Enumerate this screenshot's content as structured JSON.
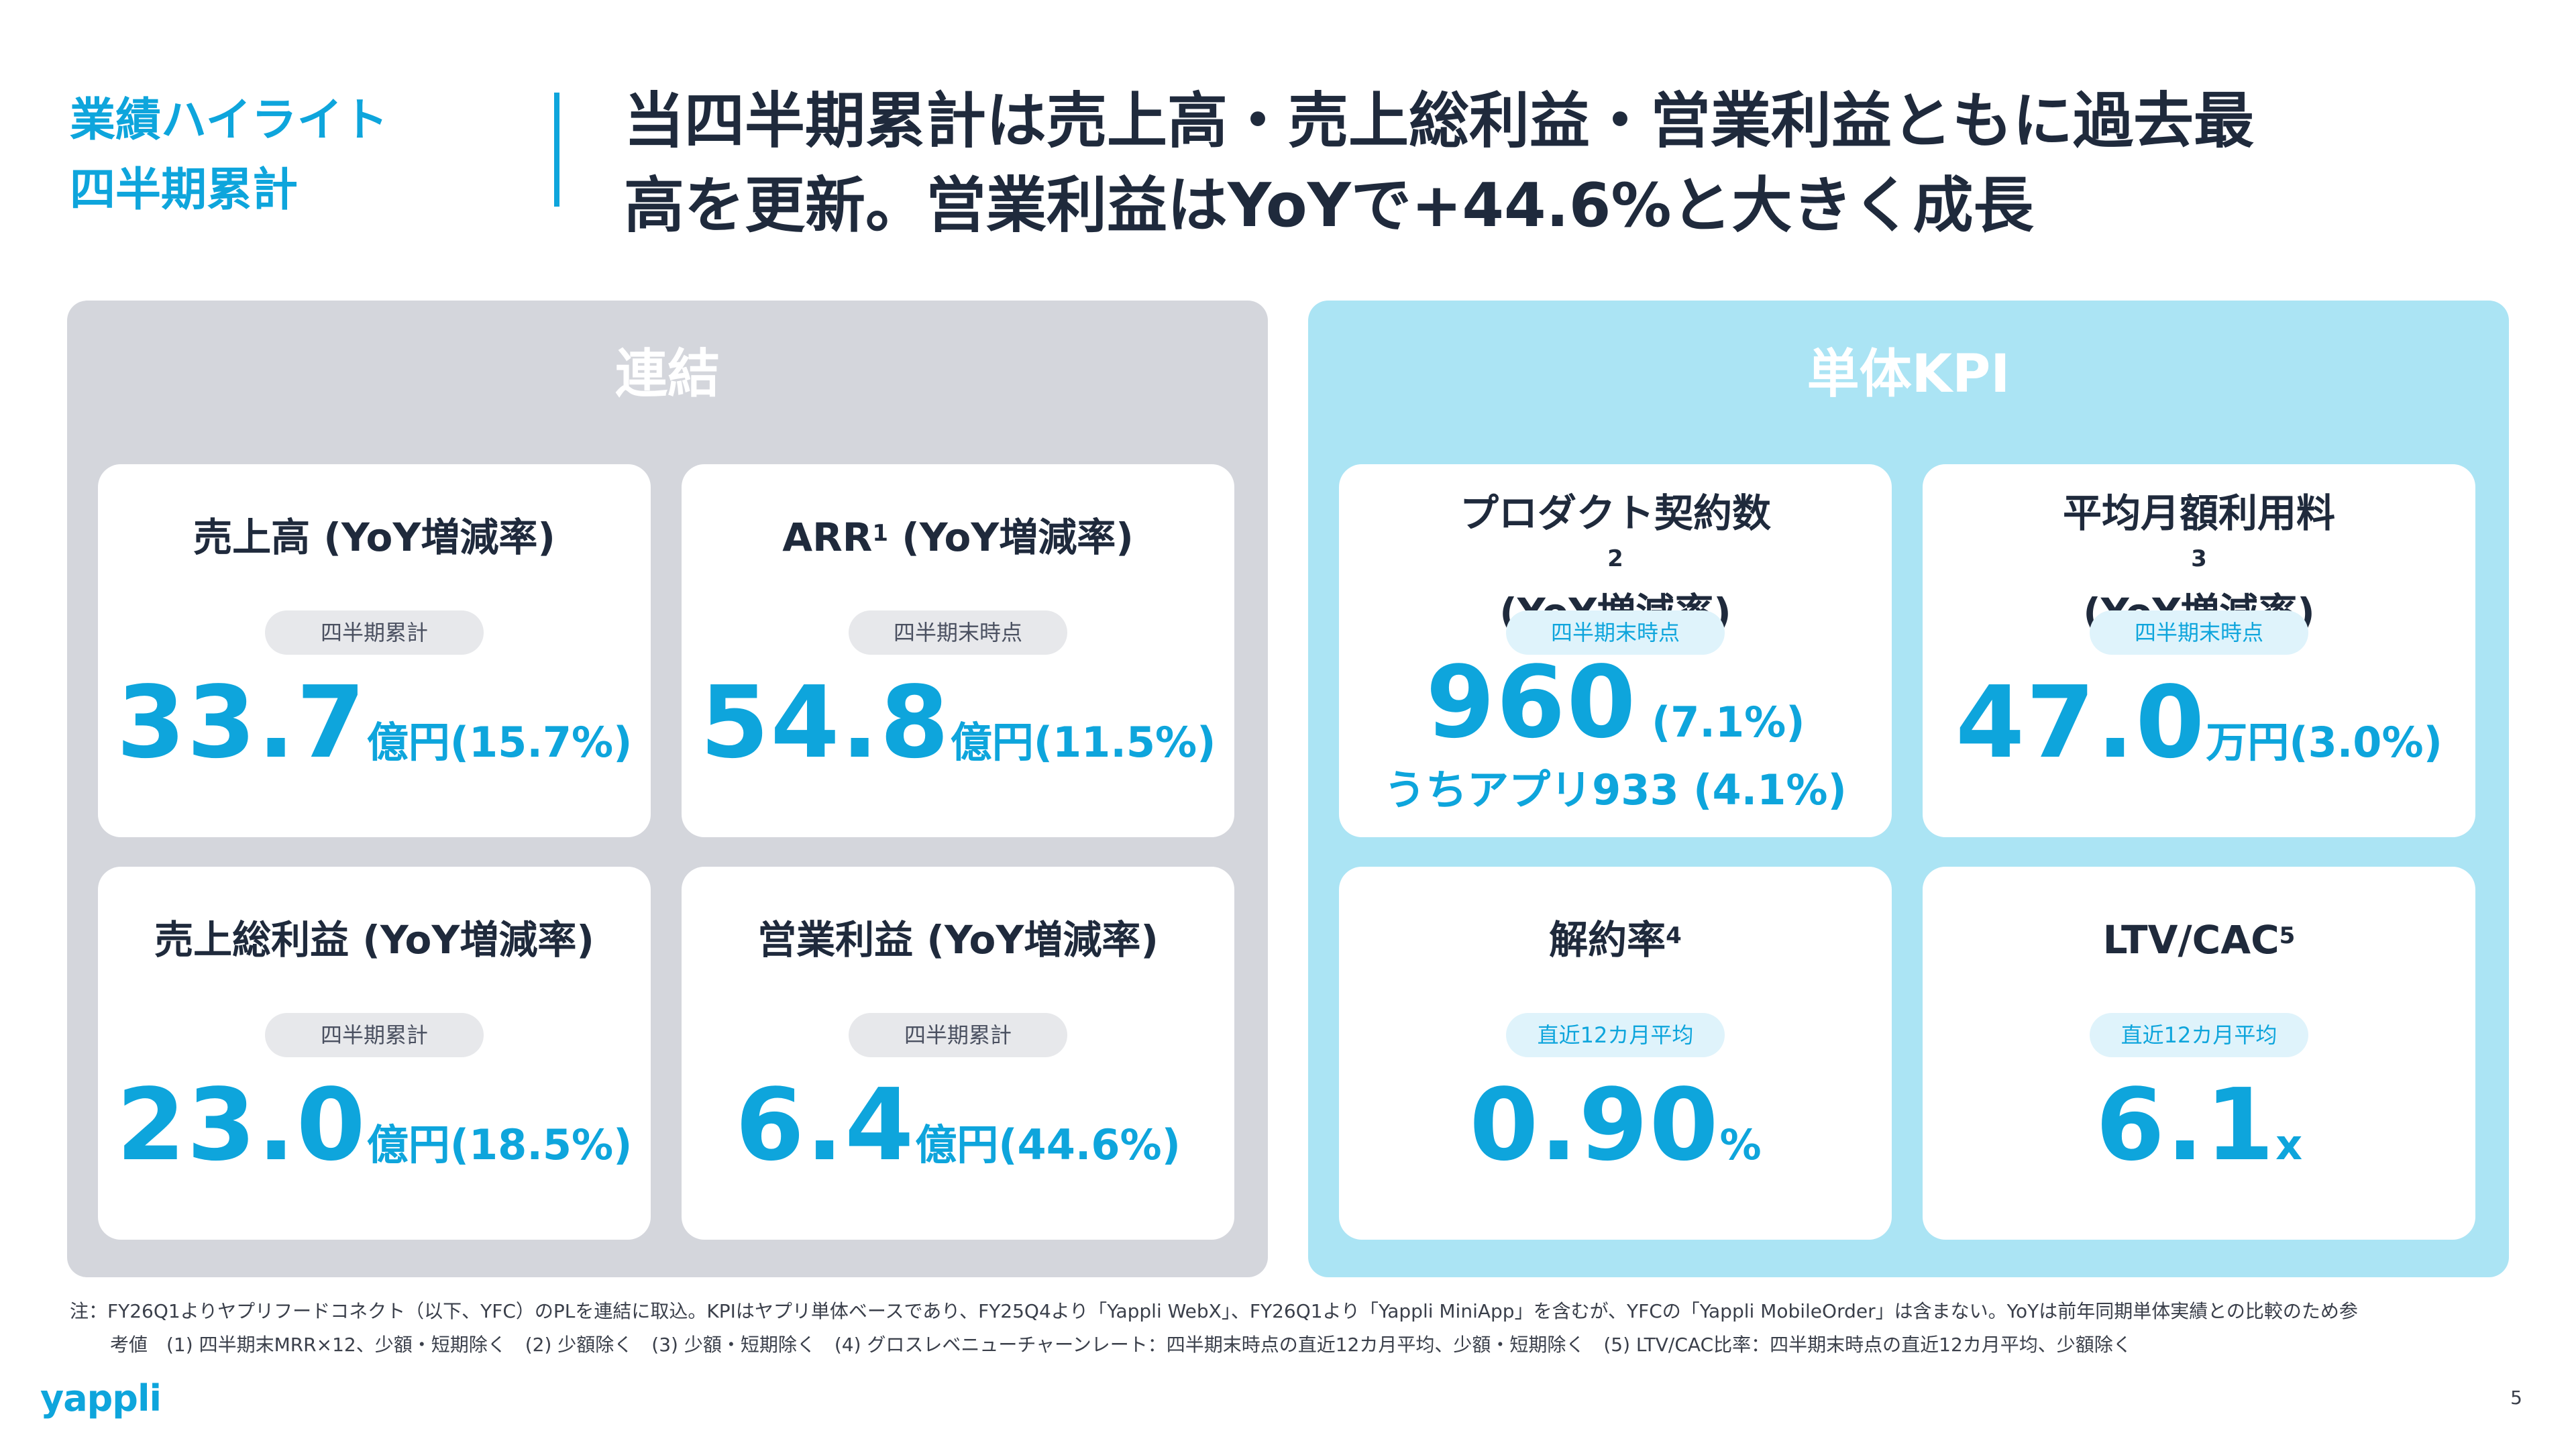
{
  "header": {
    "section_line1": "業績ハイライト",
    "section_line2": "四半期累計",
    "headline_line1": "当四半期累計は売上高・売上総利益・営業利益ともに過去最",
    "headline_line2": "高を更新。営業利益はYoYで+44.6%と大きく成長"
  },
  "consolidated": {
    "title": "連結",
    "cards": [
      {
        "label": "売上高 (YoY増減率)",
        "pill": "四半期累計",
        "value": "33.7",
        "unit": "億円",
        "change": "(15.7%)"
      },
      {
        "label": "ARR",
        "label_sup": "1",
        "label_suffix": " (YoY増減率)",
        "pill": "四半期末時点",
        "value": "54.8",
        "unit": "億円",
        "change": "(11.5%)"
      },
      {
        "label": "売上総利益 (YoY増減率)",
        "pill": "四半期累計",
        "value": "23.0",
        "unit": "億円",
        "change": "(18.5%)"
      },
      {
        "label": "営業利益 (YoY増減率)",
        "pill": "四半期累計",
        "value": "6.4",
        "unit": "億円",
        "change": "(44.6%)"
      }
    ]
  },
  "standalone": {
    "title": "単体KPI",
    "cards": [
      {
        "label_line1": "プロダクト契約数",
        "label_sup": "2",
        "label_line2": "(YoY増減率)",
        "pill": "四半期末時点",
        "value": "960",
        "change": " (7.1%)",
        "subline": "うちアプリ933 (4.1%)"
      },
      {
        "label_line1": "平均月額利用料",
        "label_sup": "3",
        "label_line2": "(YoY増減率)",
        "pill": "四半期末時点",
        "value": "47.0",
        "unit": "万円",
        "change": "(3.0%)"
      },
      {
        "label": "解約率",
        "label_sup": "4",
        "pill": "直近12カ月平均",
        "value": "0.90",
        "unit": "%"
      },
      {
        "label": "LTV/CAC",
        "label_sup": "5",
        "pill": "直近12カ月平均",
        "value": "6.1",
        "unit": "x"
      }
    ]
  },
  "footer": {
    "note_line1": "注：FY26Q1よりヤプリフードコネクト（以下、YFC）のPLを連結に取込。KPIはヤプリ単体ベースであり、FY25Q4より「Yappli WebX」、FY26Q1より「Yappli MiniApp」を含むが、YFCの「Yappli MobileOrder」は含まない。YoYは前年同期単体実績との比較のため参",
    "note_line2": "考値　(1) 四半期末MRR×12、少額・短期除く　(2) 少額除く　(3) 少額・短期除く　(4) グロスレベニューチャーンレート：四半期末時点の直近12カ月平均、少額・短期除く　(5) LTV/CAC比率：四半期末時点の直近12カ月平均、少額除く",
    "logo": "yappli",
    "page_number": "5"
  },
  "colors": {
    "accent": "#0ea5dc",
    "consolidated_bg": "#d4d6dc",
    "standalone_bg": "#abe4f4",
    "text_dark": "#1f2a3c"
  }
}
